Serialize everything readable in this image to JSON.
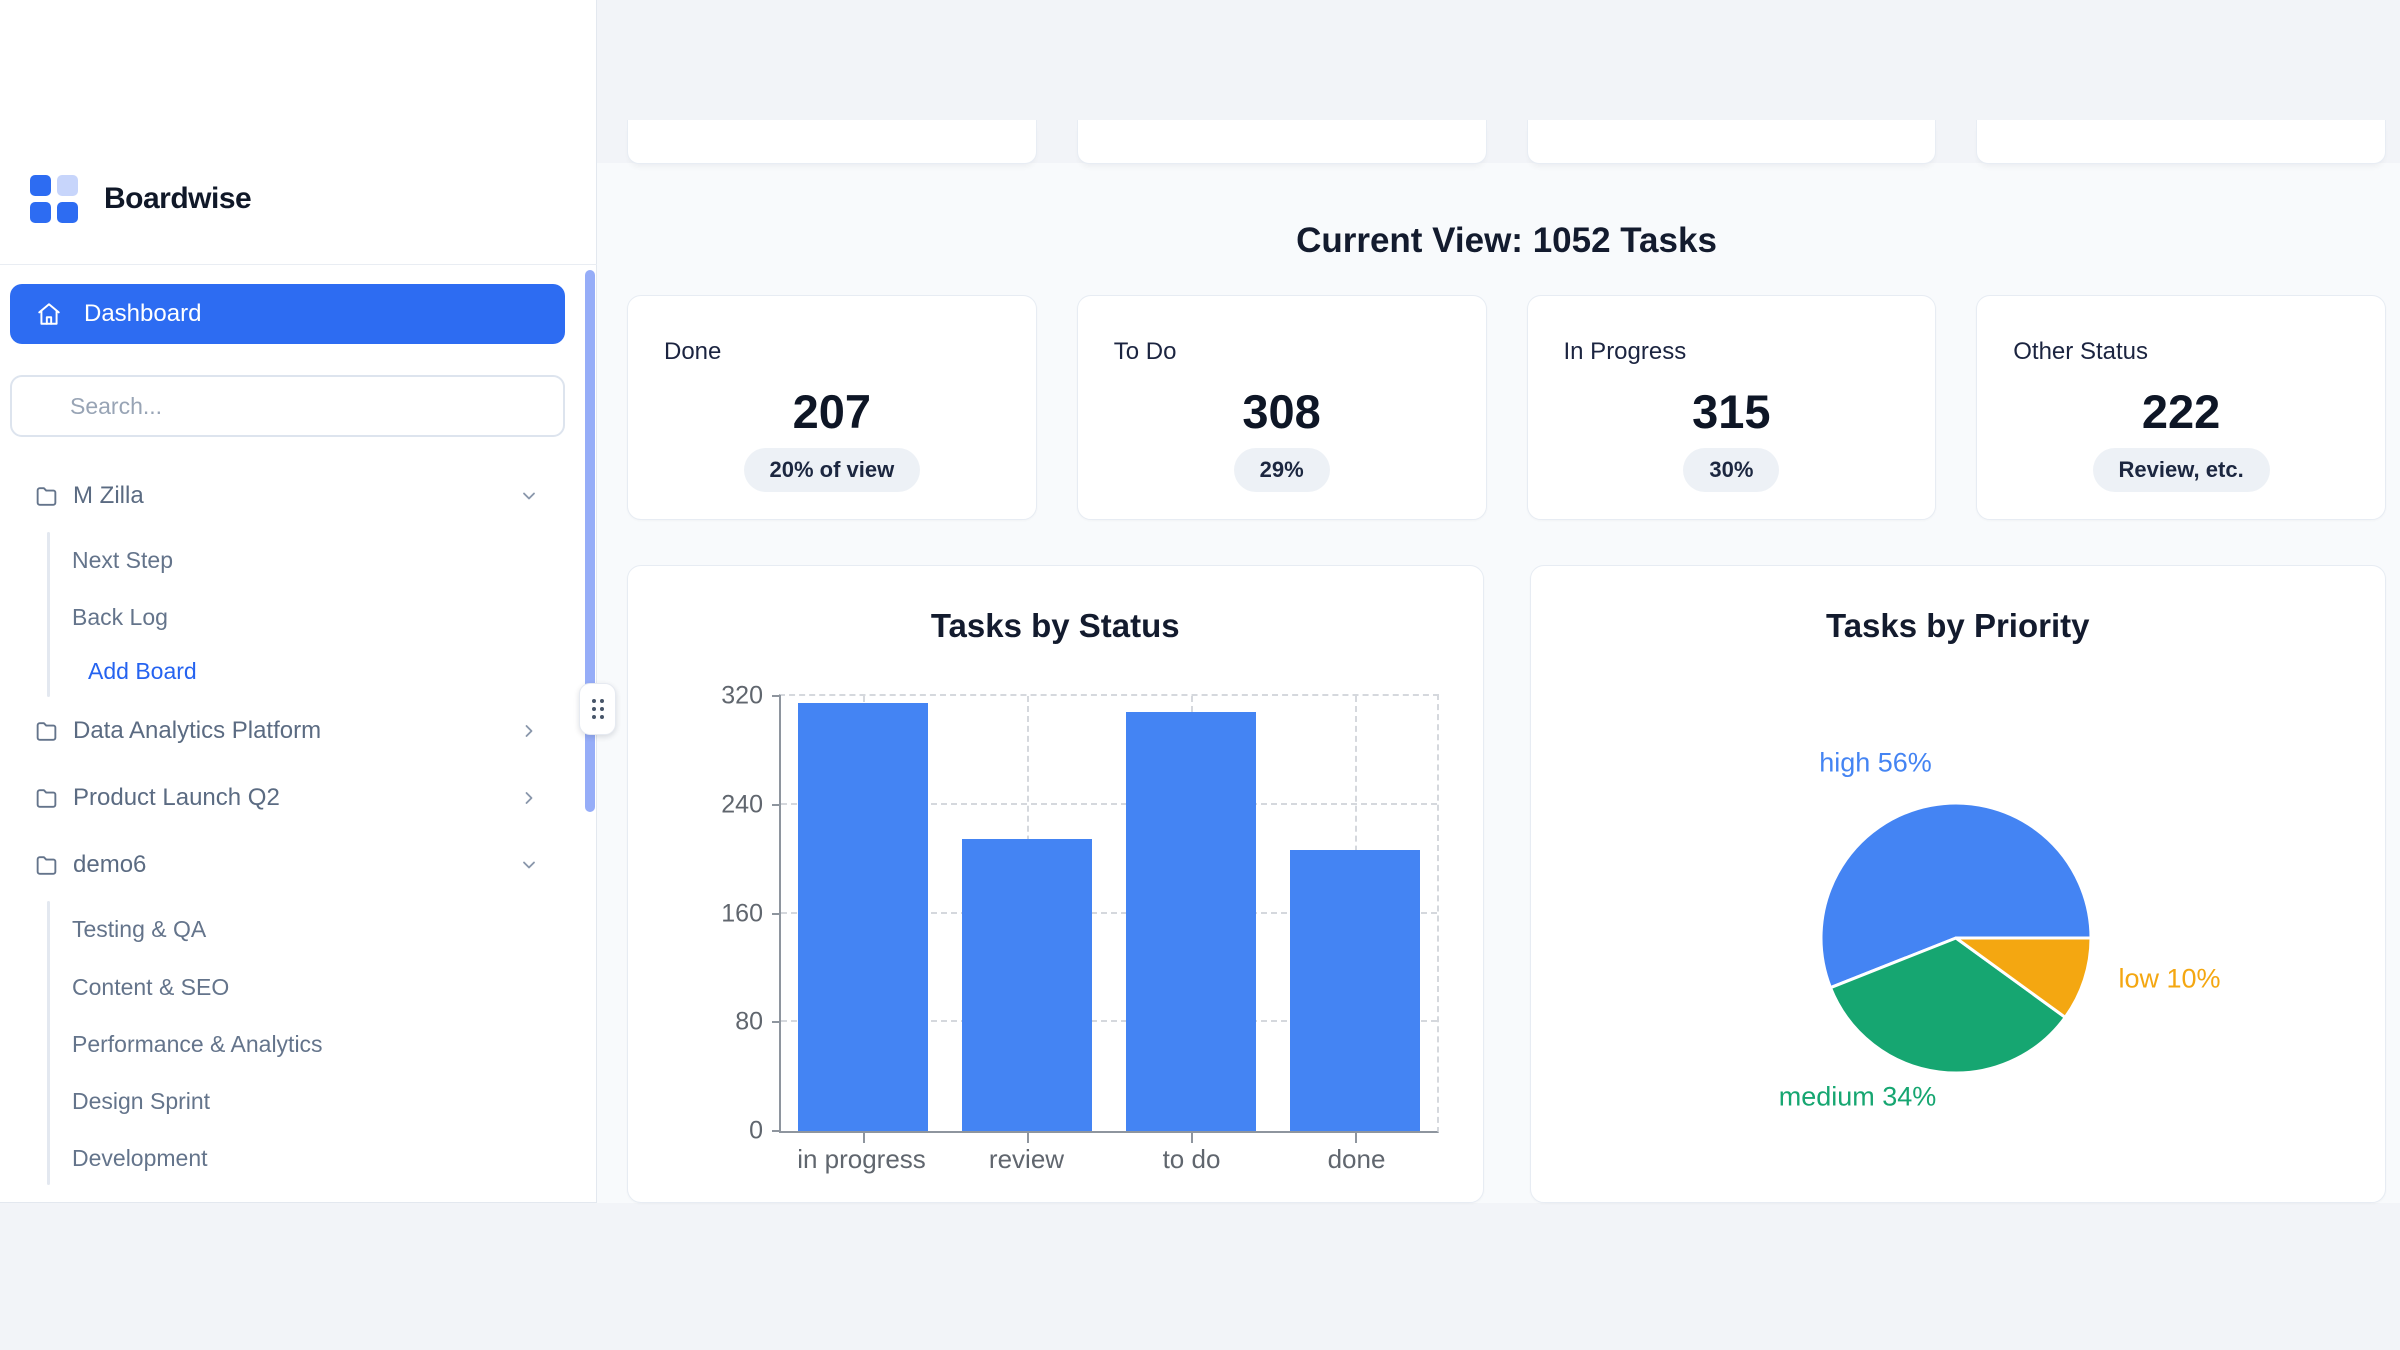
{
  "app": {
    "name": "Boardwise"
  },
  "colors": {
    "accent_blue": "#2d6cf2",
    "link_blue": "#2563f0",
    "bar_blue": "#4484f3",
    "pie_green": "#16a671",
    "pie_orange": "#f4a711",
    "scrollbar_blue": "#96adf8"
  },
  "icons": {
    "logo": "grid-logo-icon",
    "dashboard": "home-icon",
    "folder": "folder-icon",
    "expanded": "chevron-down-icon",
    "collapsed": "chevron-right-icon",
    "handle": "grip-dots-icon"
  },
  "sidebar": {
    "dashboard_label": "Dashboard",
    "search_placeholder": "Search...",
    "groups": [
      {
        "label": "M Zilla",
        "state": "expanded",
        "children": [
          "Next Step",
          "Back Log",
          "Add Board"
        ]
      },
      {
        "label": "Data Analytics Platform",
        "state": "collapsed",
        "children": []
      },
      {
        "label": "Product Launch Q2",
        "state": "collapsed",
        "children": []
      },
      {
        "label": "demo6",
        "state": "expanded",
        "children": [
          "Testing & QA",
          "Content & SEO",
          "Performance & Analytics",
          "Design Sprint",
          "Development"
        ]
      }
    ]
  },
  "header": {
    "title": "Current View: 1052 Tasks"
  },
  "stats": [
    {
      "label": "Done",
      "value": "207",
      "badge": "20% of view"
    },
    {
      "label": "To Do",
      "value": "308",
      "badge": "29%"
    },
    {
      "label": "In Progress",
      "value": "315",
      "badge": "30%"
    },
    {
      "label": "Other Status",
      "value": "222",
      "badge": "Review, etc."
    }
  ],
  "chart_data": [
    {
      "type": "bar",
      "title": "Tasks by Status",
      "categories": [
        "in progress",
        "review",
        "to do",
        "done"
      ],
      "values": [
        315,
        215,
        308,
        207
      ],
      "xlabel": "",
      "ylabel": "",
      "ylim": [
        0,
        320
      ],
      "yticks": [
        0,
        80,
        160,
        240,
        320
      ],
      "grid": "dashed",
      "legend": "none",
      "color": "#4484f3"
    },
    {
      "type": "pie",
      "title": "Tasks by Priority",
      "start_angle_deg": 0,
      "direction": "counterclockwise",
      "slices": [
        {
          "label": "high",
          "pct": 56,
          "color": "#4484f3"
        },
        {
          "label": "medium",
          "pct": 34,
          "color": "#16a671"
        },
        {
          "label": "low",
          "pct": 10,
          "color": "#f4a711"
        }
      ]
    }
  ]
}
